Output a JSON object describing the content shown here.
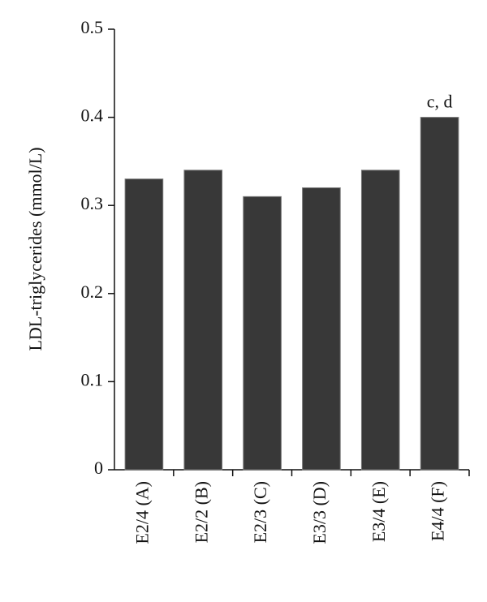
{
  "chart_data": {
    "type": "bar",
    "y_label": "LDL-triglycerides (mmol/L)",
    "categories": [
      "E2/4 (A)",
      "E2/2 (B)",
      "E2/3 (C)",
      "E3/3 (D)",
      "E3/4 (E)",
      "E4/4 (F)"
    ],
    "values": [
      0.33,
      0.34,
      0.31,
      0.32,
      0.34,
      0.4
    ],
    "color": "#383838",
    "ylim": [
      0,
      0.5
    ],
    "yticks": [
      0,
      0.1,
      0.2,
      0.3,
      0.4,
      0.5
    ],
    "grid": false,
    "annotations": [
      {
        "category": "E4/4 (F)",
        "text": "c, d"
      }
    ]
  }
}
